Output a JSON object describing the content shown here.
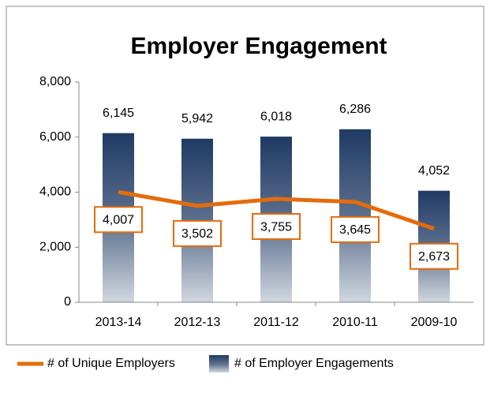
{
  "chart_data": {
    "type": "bar",
    "title": "Employer Engagement",
    "categories": [
      "2013-14",
      "2012-13",
      "2011-12",
      "2010-11",
      "2009-10"
    ],
    "series": [
      {
        "name": "# of Unique Employers",
        "type": "line",
        "color": "#e46c0a",
        "values": [
          4007,
          3502,
          3755,
          3645,
          2673
        ],
        "value_labels": [
          "4,007",
          "3,502",
          "3,755",
          "3,645",
          "2,673"
        ]
      },
      {
        "name": "# of Employer Engagements",
        "type": "bar",
        "color": "#1f3a64",
        "values": [
          6145,
          5942,
          6018,
          6286,
          4052
        ],
        "value_labels": [
          "6,145",
          "5,942",
          "6,018",
          "6,286",
          "4,052"
        ]
      }
    ],
    "ylim": [
      0,
      8000
    ],
    "yticks": [
      0,
      {
        "value": 2000,
        "label": "2,000"
      },
      {
        "value": 4000,
        "label": "4,000"
      },
      {
        "value": 6000,
        "label": "6,000"
      },
      {
        "value": 8000,
        "label": "8,000"
      }
    ],
    "grid": false
  }
}
